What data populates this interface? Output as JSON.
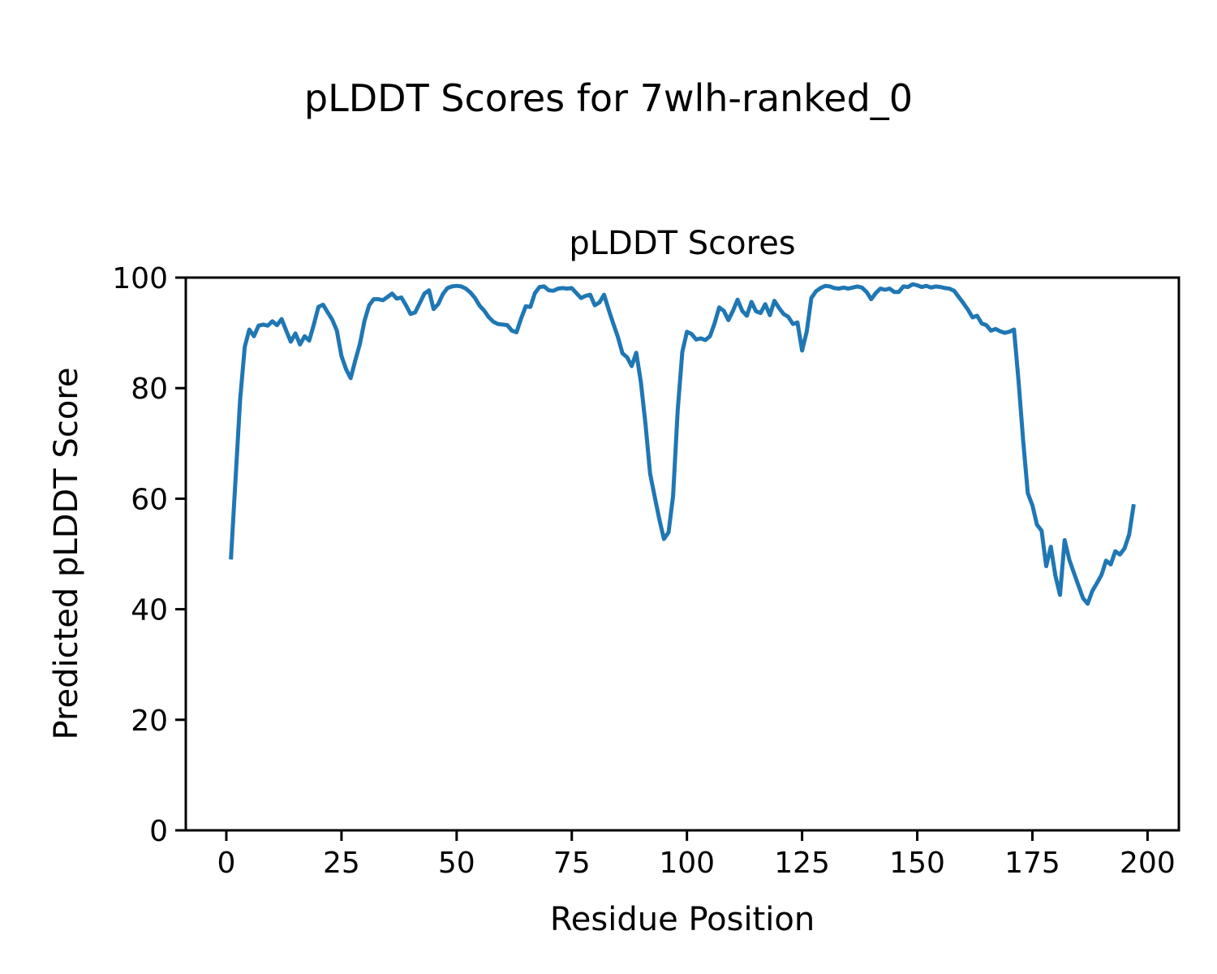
{
  "figure": {
    "suptitle": "pLDDT Scores for 7wlh-ranked_0",
    "axes_title": "pLDDT Scores",
    "xlabel": "Residue Position",
    "ylabel": "Predicted pLDDT Score"
  },
  "colors": {
    "line": "#1f77b4",
    "axes": "#000000",
    "background": "#ffffff"
  },
  "chart_data": {
    "type": "line",
    "title": "pLDDT Scores",
    "suptitle": "pLDDT Scores for 7wlh-ranked_0",
    "xlabel": "Residue Position",
    "ylabel": "Predicted pLDDT Score",
    "legend": "none",
    "grid": false,
    "line_color": "#1f77b4",
    "xlim": [
      -8.8,
      206.8
    ],
    "ylim": [
      0,
      100
    ],
    "xticks": [
      0,
      25,
      50,
      75,
      100,
      125,
      150,
      175,
      200
    ],
    "yticks": [
      0,
      20,
      40,
      60,
      80,
      100
    ],
    "x_start": 1,
    "x_step": 1,
    "values": [
      49,
      63.5,
      78,
      87.5,
      90.6,
      89.4,
      91.3,
      91.5,
      91.3,
      92.1,
      91.4,
      92.5,
      90.4,
      88.4,
      89.9,
      87.9,
      89.4,
      88.6,
      91.5,
      94.7,
      95.1,
      93.7,
      92.4,
      90.4,
      85.8,
      83.4,
      81.8,
      85,
      88,
      92.2,
      95,
      96.1,
      96.1,
      95.9,
      96.5,
      97.1,
      96.2,
      96.4,
      95,
      93.4,
      93.7,
      95.4,
      97.1,
      97.7,
      94.3,
      95.2,
      97,
      98.1,
      98.4,
      98.5,
      98.4,
      98,
      97.3,
      96.3,
      94.9,
      94,
      92.8,
      92,
      91.6,
      91.5,
      91.4,
      90.4,
      90.1,
      92.6,
      94.8,
      94.7,
      97.2,
      98.3,
      98.4,
      97.7,
      97.6,
      98,
      98.1,
      98,
      98.1,
      97.2,
      96.3,
      96.7,
      96.9,
      95,
      95.5,
      96.9,
      94.2,
      91.7,
      89.3,
      86.3,
      85.6,
      84,
      86.4,
      81.1,
      73.5,
      64.5,
      60.4,
      56.3,
      52.7,
      53.9,
      60.5,
      76,
      86.6,
      90.2,
      89.8,
      88.8,
      89,
      88.7,
      89.4,
      91.7,
      94.6,
      94,
      92.3,
      94,
      96,
      94,
      93.1,
      95.6,
      93.9,
      93.6,
      95.2,
      93.2,
      95.8,
      94.5,
      93.4,
      92.9,
      91.6,
      91.9,
      86.8,
      90.2,
      96.3,
      97.5,
      98.1,
      98.5,
      98.4,
      98.1,
      98,
      98.2,
      98,
      98.2,
      98.4,
      98.2,
      97.4,
      96.1,
      97.2,
      98,
      97.8,
      98,
      97.4,
      97.4,
      98.4,
      98.3,
      98.8,
      98.6,
      98.3,
      98.5,
      98.2,
      98.4,
      98.3,
      98.1,
      98,
      97.6,
      96.5,
      95.4,
      94.2,
      92.8,
      93.1,
      91.7,
      91.4,
      90.4,
      90.7,
      90.3,
      90,
      90.2,
      90.6,
      81.3,
      70.5,
      61,
      58.8,
      55.3,
      54.2,
      47.8,
      51.3,
      46,
      42.6,
      52.5,
      49,
      46.6,
      44.3,
      42,
      41,
      43.3,
      44.7,
      46.2,
      48.8,
      48.1,
      50.5,
      49.9,
      51,
      53.5,
      59
    ]
  }
}
